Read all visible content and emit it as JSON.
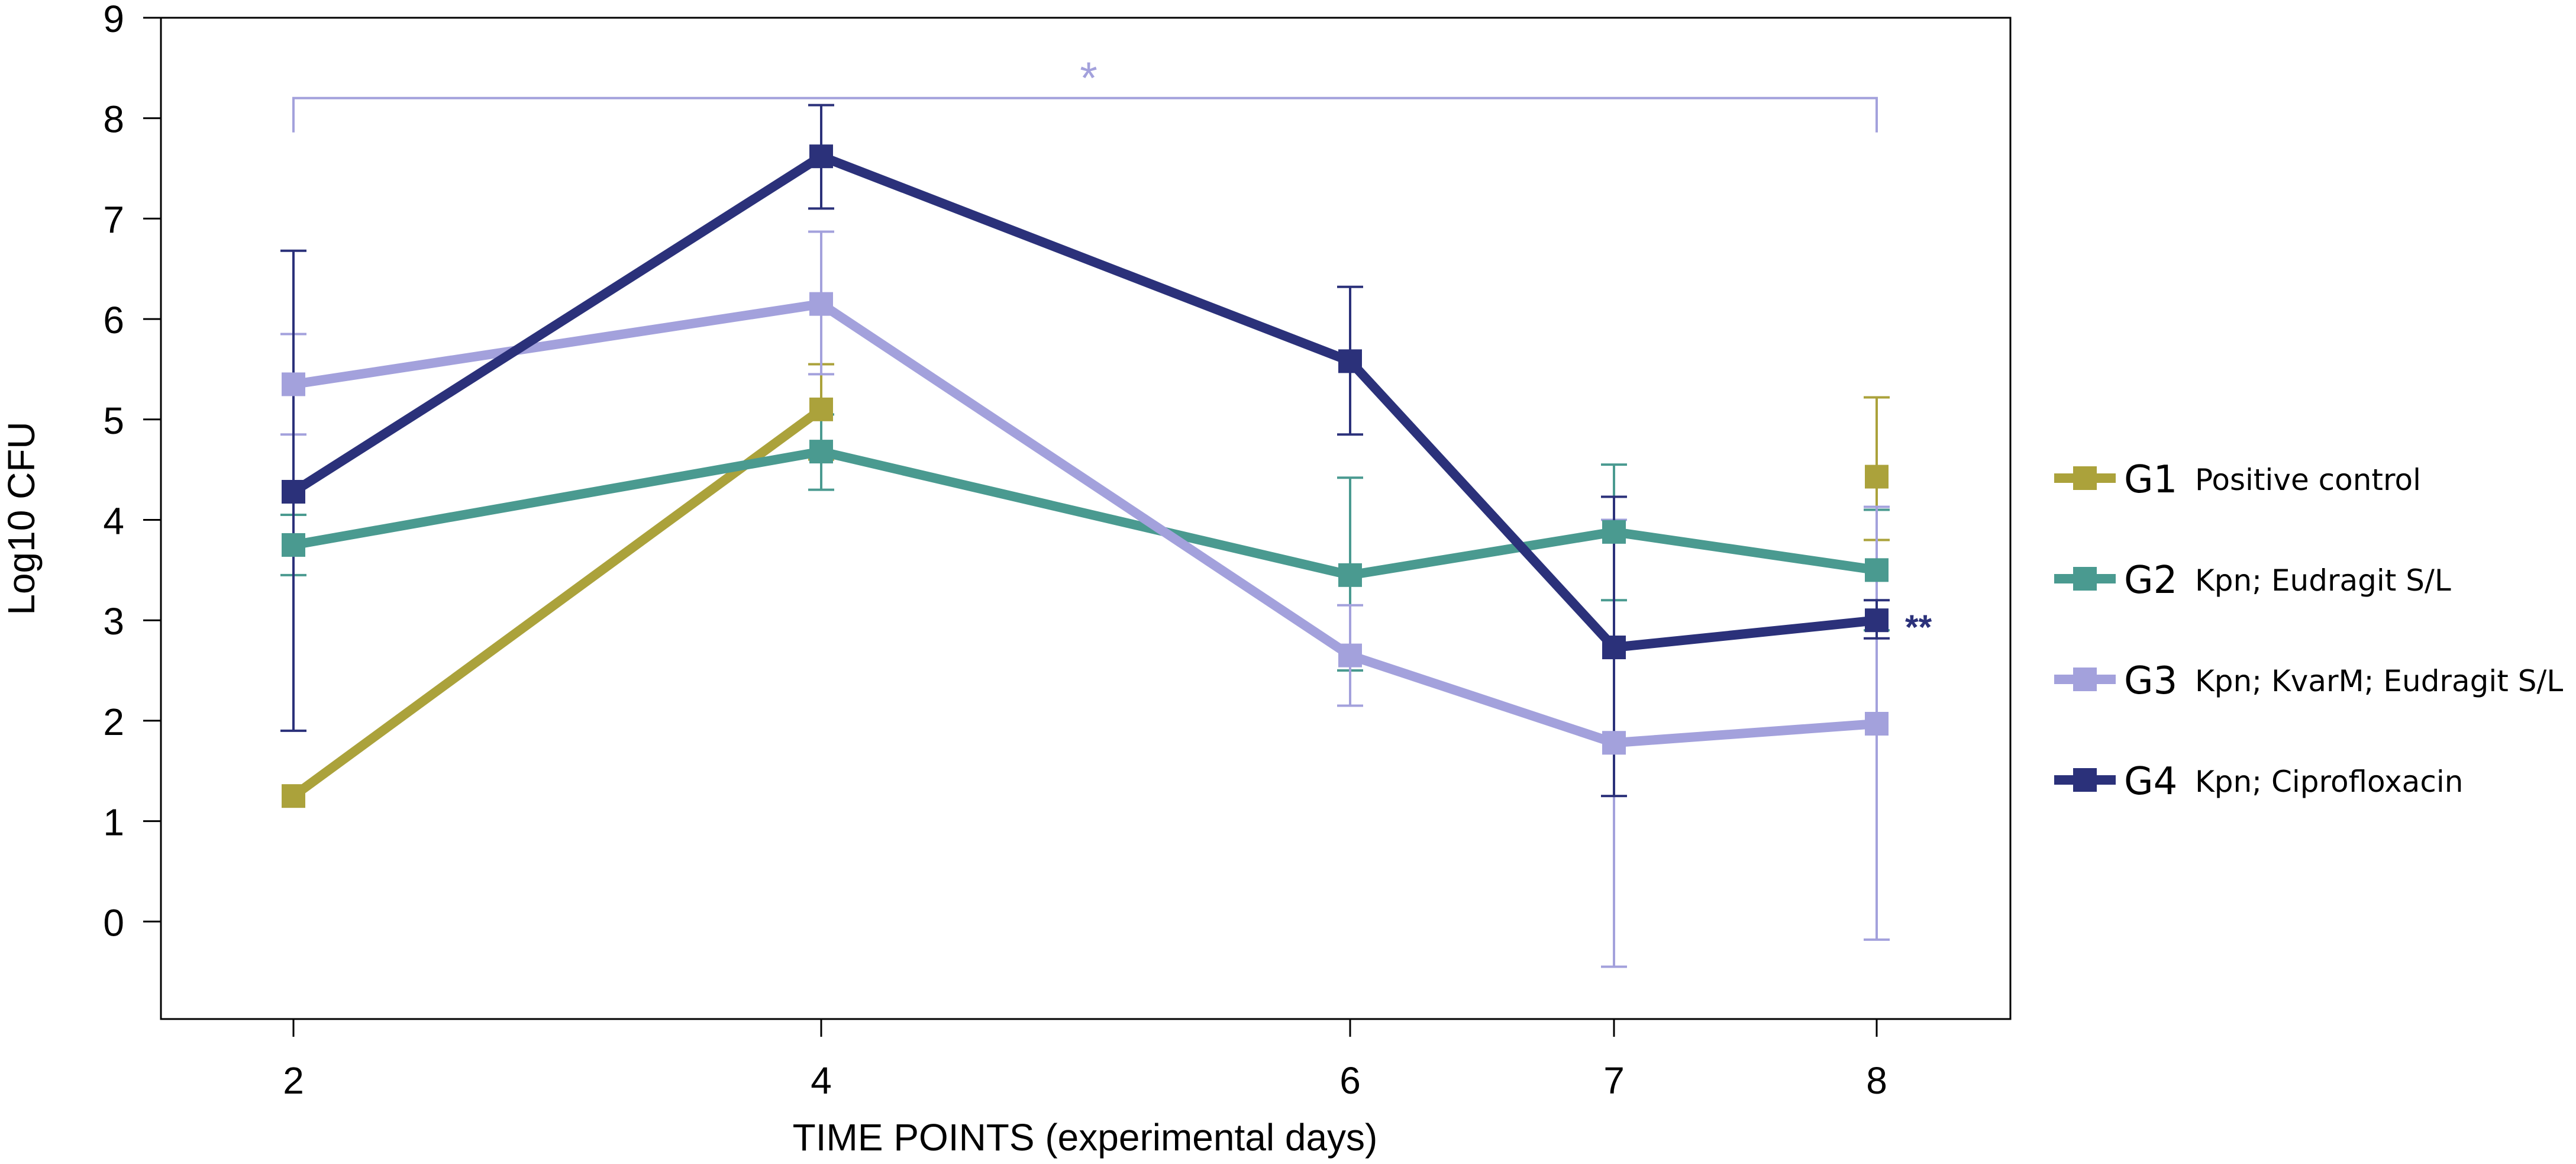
{
  "chart_data": {
    "type": "line",
    "title": "",
    "xlabel": "TIME POINTS (experimental days)",
    "ylabel": "Log10 CFU",
    "x": [
      2,
      4,
      6,
      7,
      8
    ],
    "x_tick_labels": [
      "2",
      "4",
      "6",
      "7",
      "8"
    ],
    "y_ticks": [
      0,
      1,
      2,
      3,
      4,
      5,
      6,
      7,
      8,
      9
    ],
    "y_tick_labels": [
      "0",
      "1",
      "2",
      "3",
      "4",
      "5",
      "6",
      "7",
      "8",
      "9"
    ],
    "ylim": [
      -1,
      9
    ],
    "grid": false,
    "legend_position": "right",
    "series": [
      {
        "id": "G1",
        "name": "G1",
        "description": "Positive control",
        "color": "#aba23b",
        "values": [
          1.25,
          5.1,
          null,
          null,
          4.43
        ],
        "error_low": [
          null,
          4.6,
          null,
          null,
          3.8
        ],
        "error_high": [
          null,
          5.55,
          null,
          null,
          5.22
        ]
      },
      {
        "id": "G2",
        "name": "G2",
        "description": "Kpn; Eudragit S/L",
        "color": "#4a9a90",
        "values": [
          3.75,
          4.68,
          3.45,
          3.88,
          3.5
        ],
        "error_low": [
          3.45,
          4.3,
          2.5,
          3.2,
          2.9
        ],
        "error_high": [
          4.05,
          5.05,
          4.42,
          4.55,
          4.1
        ]
      },
      {
        "id": "G3",
        "name": "G3",
        "description": "Kpn; KvarM; Eudragit S/L",
        "color": "#a3a1dc",
        "values": [
          5.35,
          6.15,
          2.65,
          1.78,
          1.97
        ],
        "error_low": [
          4.85,
          5.45,
          2.15,
          -0.45,
          -0.18
        ],
        "error_high": [
          5.85,
          6.87,
          3.15,
          4.0,
          4.13
        ]
      },
      {
        "id": "G4",
        "name": "G4",
        "description": "Kpn; Ciprofloxacin",
        "color": "#2b317a",
        "values": [
          4.28,
          7.62,
          5.58,
          2.73,
          3.0
        ],
        "error_low": [
          1.9,
          7.1,
          4.85,
          1.25,
          2.82
        ],
        "error_high": [
          6.68,
          8.13,
          6.32,
          4.23,
          3.2
        ]
      }
    ],
    "annotations": [
      {
        "id": "bracket",
        "text": "*",
        "from_x": 2,
        "to_x": 8,
        "y": 8.2,
        "color": "#a3a1dc"
      },
      {
        "id": "g4-end",
        "text": "**",
        "x": 8,
        "y": 3.0,
        "color": "#2b317a"
      }
    ]
  }
}
